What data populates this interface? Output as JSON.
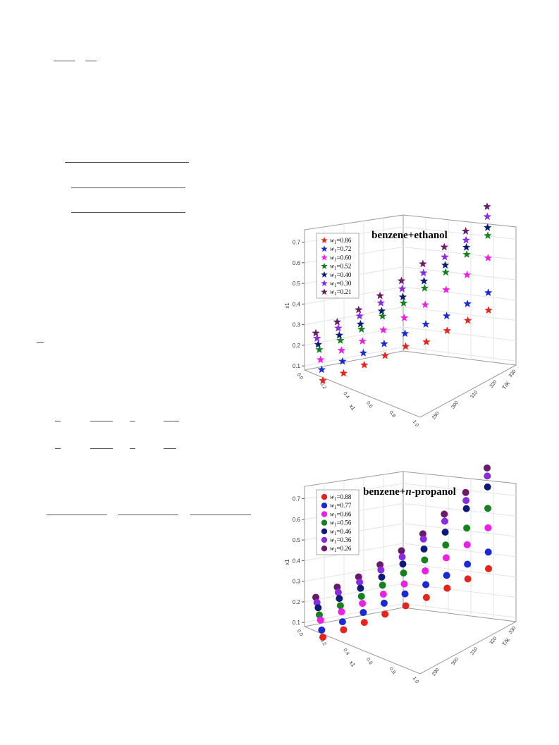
{
  "chart_data": [
    {
      "type": "scatter",
      "title": "benzene+ethanol",
      "marker": "star",
      "zlabel": "x1",
      "xlabel": "x1",
      "ylabel": "T/K",
      "x_ticks": [
        "0.2",
        "0.4",
        "0.6",
        "0.8",
        "1.0"
      ],
      "y_ticks": [
        "290",
        "300",
        "310",
        "320"
      ],
      "z_ticks": [
        "0.1",
        "0.2",
        "0.3",
        "0.4",
        "0.5",
        "0.6",
        "0.7"
      ],
      "x_tick_extra": "0.0",
      "y_tick_extra": "330",
      "zlim": [
        0.08,
        0.76
      ],
      "T": [
        283.15,
        288.15,
        293.15,
        298.15,
        303.15,
        308.15,
        313.15,
        318.15,
        323.15
      ],
      "series": [
        {
          "legend_w": "w",
          "legend_sub": "1",
          "legend_val": "=0.86",
          "color": "#e8231c",
          "x1": 0.86,
          "values": [
            0.09,
            0.1,
            0.115,
            0.135,
            0.155,
            0.15,
            0.18,
            0.205,
            0.23
          ]
        },
        {
          "legend_w": "w",
          "legend_sub": "1",
          "legend_val": "=0.72",
          "color": "#1a2bd6",
          "x1": 0.72,
          "values": [
            0.14,
            0.155,
            0.17,
            0.19,
            0.215,
            0.235,
            0.25,
            0.285,
            0.315
          ]
        },
        {
          "legend_w": "w",
          "legend_sub": "1",
          "legend_val": "=0.60",
          "color": "#ee1ee6",
          "x1": 0.6,
          "values": [
            0.185,
            0.205,
            0.225,
            0.255,
            0.29,
            0.33,
            0.38,
            0.43,
            0.49
          ]
        },
        {
          "legend_w": "w",
          "legend_sub": "1",
          "legend_val": "=0.52",
          "color": "#16811f",
          "x1": 0.52,
          "values": [
            0.23,
            0.25,
            0.28,
            0.32,
            0.36,
            0.41,
            0.465,
            0.53,
            0.6
          ]
        },
        {
          "legend_w": "w",
          "legend_sub": "1",
          "legend_val": "=0.40",
          "color": "#0d1a7a",
          "x1": 0.4,
          "values": [
            0.25,
            0.27,
            0.3,
            0.34,
            0.385,
            0.44,
            0.495,
            0.56,
            0.635
          ]
        },
        {
          "legend_w": "w",
          "legend_sub": "1",
          "legend_val": "=0.30",
          "color": "#8a2be2",
          "x1": 0.3,
          "values": [
            0.275,
            0.3,
            0.335,
            0.375,
            0.42,
            0.475,
            0.53,
            0.59,
            0.685
          ]
        },
        {
          "legend_w": "w",
          "legend_sub": "1",
          "legend_val": "=0.21",
          "color": "#6b1a6a",
          "x1": 0.21,
          "values": [
            0.295,
            0.325,
            0.36,
            0.405,
            0.455,
            0.515,
            0.575,
            0.63,
            0.73
          ]
        }
      ]
    },
    {
      "type": "scatter",
      "title": "benzene+",
      "title_italic": "n",
      "title_rest": "-propanol",
      "marker": "circle",
      "zlabel": "x1",
      "xlabel": "x1",
      "ylabel": "T/K",
      "x_ticks": [
        "0.2",
        "0.4",
        "0.6",
        "0.8",
        "1.0"
      ],
      "y_ticks": [
        "290",
        "300",
        "310",
        "320"
      ],
      "z_ticks": [
        "0.1",
        "0.2",
        "0.3",
        "0.4",
        "0.5",
        "0.6",
        "0.7"
      ],
      "x_tick_extra": "0.0",
      "y_tick_extra": "330",
      "zlim": [
        0.08,
        0.76
      ],
      "T": [
        283.15,
        288.15,
        293.15,
        298.15,
        303.15,
        308.15,
        313.15,
        318.15,
        323.15
      ],
      "series": [
        {
          "legend_w": "w",
          "legend_sub": "1",
          "legend_val": "=0.88",
          "color": "#e8231c",
          "x1": 0.88,
          "values": [
            0.09,
            0.1,
            0.11,
            0.125,
            0.14,
            0.155,
            0.175,
            0.195,
            0.22
          ]
        },
        {
          "legend_w": "w",
          "legend_sub": "1",
          "legend_val": "=0.77",
          "color": "#1a2bd6",
          "x1": 0.77,
          "values": [
            0.12,
            0.135,
            0.155,
            0.175,
            0.195,
            0.215,
            0.235,
            0.265,
            0.3
          ]
        },
        {
          "legend_w": "w",
          "legend_sub": "1",
          "legend_val": "=0.66",
          "color": "#ee1ee6",
          "x1": 0.66,
          "values": [
            0.165,
            0.18,
            0.195,
            0.215,
            0.24,
            0.28,
            0.32,
            0.36,
            0.42
          ]
        },
        {
          "legend_w": "w",
          "legend_sub": "1",
          "legend_val": "=0.56",
          "color": "#16811f",
          "x1": 0.56,
          "values": [
            0.185,
            0.205,
            0.225,
            0.255,
            0.29,
            0.33,
            0.38,
            0.44,
            0.515
          ]
        },
        {
          "legend_w": "w",
          "legend_sub": "1",
          "legend_val": "=0.46",
          "color": "#0d1a7a",
          "x1": 0.46,
          "values": [
            0.215,
            0.235,
            0.26,
            0.29,
            0.33,
            0.38,
            0.44,
            0.535,
            0.62
          ]
        },
        {
          "legend_w": "w",
          "legend_sub": "1",
          "legend_val": "=0.36",
          "color": "#8a2be2",
          "x1": 0.36,
          "values": [
            0.235,
            0.26,
            0.285,
            0.32,
            0.36,
            0.425,
            0.49,
            0.57,
            0.67
          ]
        },
        {
          "legend_w": "w",
          "legend_sub": "1",
          "legend_val": "=0.26",
          "color": "#6b1a6a",
          "x1": 0.26,
          "values": [
            0.255,
            0.28,
            0.305,
            0.34,
            0.385,
            0.445,
            0.52,
            0.605,
            0.705
          ]
        }
      ]
    }
  ]
}
